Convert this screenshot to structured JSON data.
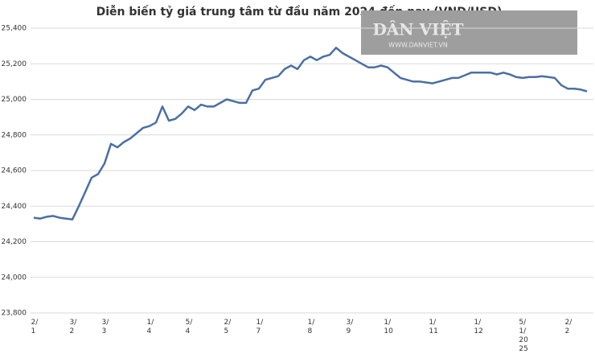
{
  "chart_data": {
    "type": "line",
    "title": "Diễn biến tỷ giá trung tâm từ đầu năm 2024 đến nay (VND/USD)",
    "watermark": {
      "title": "DÂN VIỆT",
      "url": "WWW.DANVIET.VN"
    },
    "categories": [
      "2/\n1",
      null,
      null,
      null,
      null,
      null,
      "3/\n2",
      null,
      null,
      null,
      null,
      "3/\n3",
      null,
      null,
      null,
      null,
      null,
      null,
      "1/\n4",
      null,
      null,
      null,
      null,
      null,
      "5/\n4",
      null,
      null,
      null,
      null,
      null,
      "2/\n5",
      null,
      null,
      null,
      null,
      "1/\n7",
      null,
      null,
      null,
      null,
      null,
      null,
      null,
      "1/\n8",
      null,
      null,
      null,
      null,
      null,
      "3/\n9",
      null,
      null,
      null,
      null,
      null,
      "1/\n10",
      null,
      null,
      null,
      null,
      null,
      null,
      "1/\n11",
      null,
      null,
      null,
      null,
      null,
      null,
      "1/\n12",
      null,
      null,
      null,
      null,
      null,
      null,
      "5/\n1/\n20\n25",
      null,
      null,
      null,
      null,
      null,
      null,
      "2/\n2",
      null,
      null,
      null
    ],
    "values": [
      24335,
      24330,
      24340,
      24345,
      24335,
      24330,
      24325,
      24400,
      24480,
      24560,
      24580,
      24640,
      24750,
      24730,
      24760,
      24780,
      24810,
      24840,
      24850,
      24870,
      24960,
      24880,
      24890,
      24920,
      24960,
      24940,
      24970,
      24960,
      24960,
      24980,
      25000,
      24990,
      24980,
      24980,
      25050,
      25060,
      25110,
      25120,
      25130,
      25170,
      25190,
      25170,
      25220,
      25240,
      25220,
      25240,
      25250,
      25290,
      25260,
      25240,
      25220,
      25200,
      25180,
      25180,
      25190,
      25180,
      25150,
      25120,
      25110,
      25100,
      25100,
      25095,
      25090,
      25100,
      25110,
      25120,
      25120,
      25135,
      25150,
      25150,
      25150,
      25150,
      25140,
      25150,
      25140,
      25125,
      25120,
      25125,
      25125,
      25130,
      25125,
      25120,
      25080,
      25060,
      25060,
      25055,
      25045
    ],
    "color": "#4a6fa5",
    "ylim": [
      23800,
      25400
    ],
    "yticks": [
      {
        "value": 23800,
        "label": "23,800"
      },
      {
        "value": 24000,
        "label": "24,000"
      },
      {
        "value": 24200,
        "label": "24,200"
      },
      {
        "value": 24400,
        "label": "24,400"
      },
      {
        "value": 24600,
        "label": "24,600"
      },
      {
        "value": 24800,
        "label": "24,800"
      },
      {
        "value": 25000,
        "label": "25,000"
      },
      {
        "value": 25200,
        "label": "25,200"
      },
      {
        "value": 25400,
        "label": "25,400"
      }
    ],
    "grid": true
  }
}
